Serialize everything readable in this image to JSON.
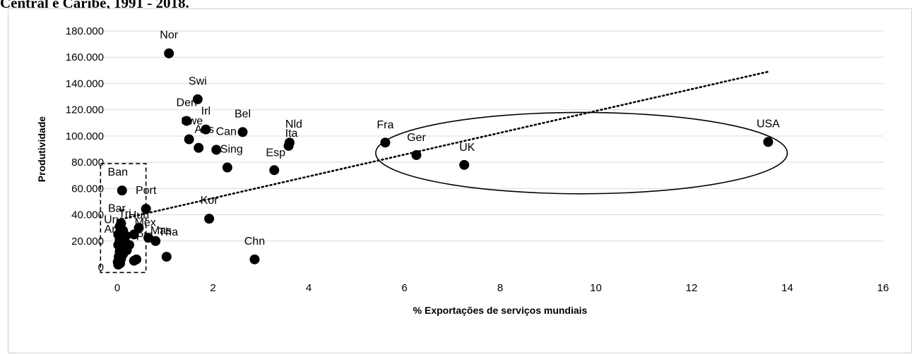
{
  "caption": "Central e Caribe, 1991 - 2018.",
  "chart_data": {
    "type": "scatter",
    "xlabel": "% Exportações de serviços mundiais",
    "ylabel": "Produtividade",
    "xlim": [
      0,
      16
    ],
    "ylim": [
      0,
      180000
    ],
    "xticks": [
      0,
      2,
      4,
      6,
      8,
      10,
      12,
      14,
      16
    ],
    "xtick_labels": [
      "0",
      "2",
      "4",
      "6",
      "8",
      "10",
      "12",
      "14",
      "16"
    ],
    "yticks": [
      0,
      20000,
      40000,
      60000,
      80000,
      100000,
      120000,
      140000,
      160000,
      180000
    ],
    "ytick_labels": [
      "0",
      "20.000",
      "40.000",
      "60.000",
      "80.000",
      "100.000",
      "120.000",
      "140.000",
      "160.000",
      "180.000"
    ],
    "grid": "horizontal",
    "legend": "none",
    "trendline": {
      "style": "dotted",
      "x": [
        0,
        13.6
      ],
      "y": [
        36000,
        149000
      ]
    },
    "highlight_ellipse": {
      "cx": 9.7,
      "cy": 87000,
      "rx": 4.3,
      "ry": 31000
    },
    "highlight_box": {
      "x": [
        -0.35,
        0.6
      ],
      "y": [
        -4000,
        79000
      ]
    },
    "points": [
      {
        "label": "Nor",
        "x": 1.08,
        "y": 163000
      },
      {
        "label": "Swi",
        "x": 1.68,
        "y": 128000
      },
      {
        "label": "Den",
        "x": 1.45,
        "y": 111500
      },
      {
        "label": "Swe",
        "x": 1.5,
        "y": 97500
      },
      {
        "label": "Aus",
        "x": 1.7,
        "y": 91000
      },
      {
        "label": "Irl",
        "x": 1.85,
        "y": 105000
      },
      {
        "label": "Can",
        "x": 2.07,
        "y": 89500
      },
      {
        "label": "Bel",
        "x": 2.62,
        "y": 103000
      },
      {
        "label": "Sing",
        "x": 2.3,
        "y": 76000
      },
      {
        "label": "Nld",
        "x": 3.6,
        "y": 95000
      },
      {
        "label": "Ita",
        "x": 3.58,
        "y": 92500
      },
      {
        "label": "Esp",
        "x": 3.28,
        "y": 74000
      },
      {
        "label": "Fra",
        "x": 5.6,
        "y": 95000
      },
      {
        "label": "Ger",
        "x": 6.25,
        "y": 85500
      },
      {
        "label": "UK",
        "x": 7.25,
        "y": 78000
      },
      {
        "label": "USA",
        "x": 13.6,
        "y": 95500
      },
      {
        "label": "Ban",
        "x": 0.1,
        "y": 58500
      },
      {
        "label": "Port",
        "x": 0.6,
        "y": 44500
      },
      {
        "label": "Kor",
        "x": 1.92,
        "y": 37000
      },
      {
        "label": "Bar",
        "x": 0.08,
        "y": 33500
      },
      {
        "label": "Hun",
        "x": 0.45,
        "y": 30000
      },
      {
        "label": "Tri",
        "x": 0.1,
        "y": 27500
      },
      {
        "label": "Mex",
        "x": 0.35,
        "y": 25000
      },
      {
        "label": "Mas",
        "x": 0.65,
        "y": 22500
      },
      {
        "label": "Tha",
        "x": 0.8,
        "y": 20000
      },
      {
        "label": "Chn",
        "x": 2.87,
        "y": 6000
      },
      {
        "label": "",
        "x": 1.03,
        "y": 8000
      },
      {
        "label": "",
        "x": 0.4,
        "y": 6000
      },
      {
        "label": "",
        "x": 0.35,
        "y": 5000
      },
      {
        "label": "",
        "x": 0.05,
        "y": 31000
      },
      {
        "label": "",
        "x": 0.12,
        "y": 28000
      },
      {
        "label": "",
        "x": 0.02,
        "y": 25000
      },
      {
        "label": "",
        "x": 0.18,
        "y": 24000
      },
      {
        "label": "",
        "x": 0.05,
        "y": 21000
      },
      {
        "label": "",
        "x": 0.15,
        "y": 19000
      },
      {
        "label": "",
        "x": 0.02,
        "y": 17000
      },
      {
        "label": "",
        "x": 0.1,
        "y": 15000
      },
      {
        "label": "",
        "x": 0.2,
        "y": 13000
      },
      {
        "label": "",
        "x": 0.05,
        "y": 12000
      },
      {
        "label": "",
        "x": 0.12,
        "y": 10000
      },
      {
        "label": "",
        "x": 0.03,
        "y": 8000
      },
      {
        "label": "",
        "x": 0.08,
        "y": 6500
      },
      {
        "label": "",
        "x": 0.01,
        "y": 4000
      },
      {
        "label": "",
        "x": 0.06,
        "y": 3000
      },
      {
        "label": "",
        "x": 0.02,
        "y": 2000
      },
      {
        "label": "",
        "x": 0.15,
        "y": 22000
      },
      {
        "label": "",
        "x": 0.25,
        "y": 17000
      }
    ],
    "annotations": [
      {
        "text": "Nor",
        "x": 1.08,
        "y": 163000
      },
      {
        "text": "Swi",
        "x": 1.68,
        "y": 128000
      },
      {
        "text": "Den",
        "x": 1.45,
        "y": 111500
      },
      {
        "text": "Irl",
        "x": 1.85,
        "y": 105000
      },
      {
        "text": "Bel",
        "x": 2.62,
        "y": 103000
      },
      {
        "text": "Nld",
        "x": 3.6,
        "y": 95000
      },
      {
        "text": "Ita",
        "x": 3.58,
        "y": 92500
      },
      {
        "text": "Swe",
        "x": 1.5,
        "y": 97500
      },
      {
        "text": "Aus",
        "x": 1.7,
        "y": 91000
      },
      {
        "text": "Can",
        "x": 2.07,
        "y": 89500
      },
      {
        "text": "Sing",
        "x": 2.3,
        "y": 76000
      },
      {
        "text": "Esp",
        "x": 3.28,
        "y": 74000
      },
      {
        "text": "Fra",
        "x": 5.6,
        "y": 95000
      },
      {
        "text": "Ger",
        "x": 6.25,
        "y": 85500
      },
      {
        "text": "UK",
        "x": 7.25,
        "y": 78000
      },
      {
        "text": "USA",
        "x": 13.6,
        "y": 95500
      },
      {
        "text": "Ban",
        "x": 0.1,
        "y": 58500
      },
      {
        "text": "Port",
        "x": 0.6,
        "y": 44500
      },
      {
        "text": "Kor",
        "x": 1.92,
        "y": 37000
      },
      {
        "text": "Bar",
        "x": 0.08,
        "y": 33500
      },
      {
        "text": "Hun",
        "x": 0.45,
        "y": 30000
      },
      {
        "text": "Tri",
        "x": 0.1,
        "y": 27500
      },
      {
        "text": "Mex",
        "x": 0.35,
        "y": 25000
      },
      {
        "text": "Mas",
        "x": 0.65,
        "y": 22500
      },
      {
        "text": "Tha",
        "x": 0.8,
        "y": 20000
      },
      {
        "text": "Chn",
        "x": 2.87,
        "y": 6000
      },
      {
        "text": "Uru",
        "x": 0.0,
        "y": 26000
      },
      {
        "text": "Arg",
        "x": 0.0,
        "y": 22000
      },
      {
        "text": "Phi",
        "x": 0.3,
        "y": 19000
      }
    ]
  }
}
